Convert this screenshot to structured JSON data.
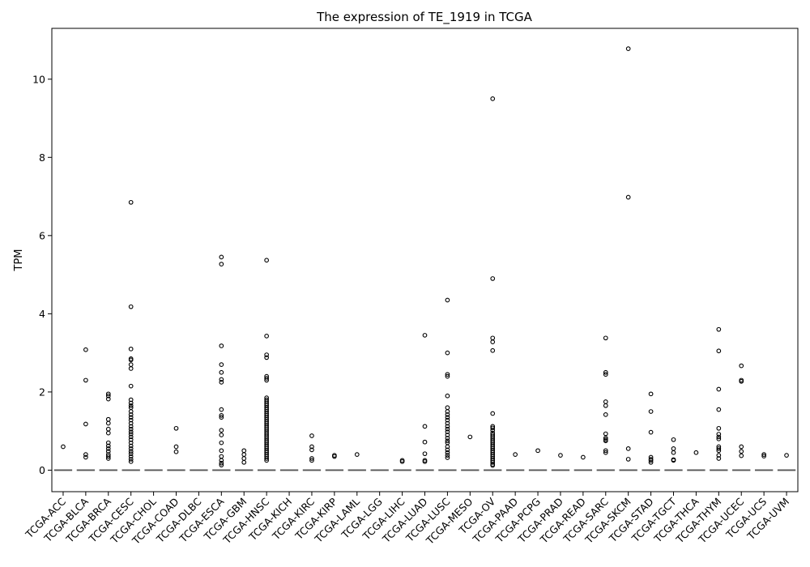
{
  "chart_data": {
    "type": "box",
    "title": "The expression of TE_1919 in TCGA",
    "xlabel": "",
    "ylabel": "TPM",
    "ylim": [
      -0.55,
      11.3
    ],
    "yticks": [
      0,
      2,
      4,
      6,
      8,
      10
    ],
    "grid": false,
    "categories": [
      "TCGA-ACC",
      "TCGA-BLCA",
      "TCGA-BRCA",
      "TCGA-CESC",
      "TCGA-CHOL",
      "TCGA-COAD",
      "TCGA-DLBC",
      "TCGA-ESCA",
      "TCGA-GBM",
      "TCGA-HNSC",
      "TCGA-KICH",
      "TCGA-KIRC",
      "TCGA-KIRP",
      "TCGA-LAML",
      "TCGA-LGG",
      "TCGA-LIHC",
      "TCGA-LUAD",
      "TCGA-LUSC",
      "TCGA-MESO",
      "TCGA-OV",
      "TCGA-PAAD",
      "TCGA-PCPG",
      "TCGA-PRAD",
      "TCGA-READ",
      "TCGA-SARC",
      "TCGA-SKCM",
      "TCGA-STAD",
      "TCGA-TGCT",
      "TCGA-THCA",
      "TCGA-THYM",
      "TCGA-UCEC",
      "TCGA-UCS",
      "TCGA-UVM"
    ],
    "medians": [
      0,
      0,
      0,
      0,
      0,
      0,
      0,
      0,
      0,
      0,
      0,
      0,
      0,
      0,
      0,
      0,
      0,
      0,
      0,
      0,
      0,
      0,
      0,
      0,
      0,
      0,
      0,
      0,
      0,
      0,
      0,
      0,
      0
    ],
    "outliers": [
      [
        0.6
      ],
      [
        3.08,
        2.3,
        1.18,
        0.4,
        0.33
      ],
      [
        1.95,
        1.9,
        1.82,
        1.3,
        1.2,
        1.05,
        0.95,
        0.7,
        0.62,
        0.55,
        0.48,
        0.4,
        0.35,
        0.3
      ],
      [
        6.85,
        4.18,
        3.1,
        2.85,
        2.82,
        2.7,
        2.6,
        2.15,
        1.8,
        1.72,
        1.65,
        1.6,
        1.5,
        1.42,
        1.35,
        1.28,
        1.2,
        1.12,
        1.05,
        0.98,
        0.92,
        0.85,
        0.78,
        0.7,
        0.62,
        0.55,
        0.48,
        0.42,
        0.35,
        0.28,
        0.22
      ],
      [],
      [
        1.07,
        0.6,
        0.47
      ],
      [],
      [
        5.45,
        5.27,
        3.18,
        2.7,
        2.5,
        2.32,
        2.25,
        1.55,
        1.4,
        1.35,
        1.02,
        0.9,
        0.7,
        0.5,
        0.35,
        0.25,
        0.18,
        0.13
      ],
      [
        0.5,
        0.4,
        0.3,
        0.2
      ],
      [
        5.37,
        3.43,
        2.95,
        2.88,
        2.4,
        2.35,
        2.3,
        1.85,
        1.8,
        1.75,
        1.7,
        1.65,
        1.6,
        1.55,
        1.5,
        1.45,
        1.4,
        1.35,
        1.3,
        1.25,
        1.2,
        1.15,
        1.1,
        1.05,
        1.0,
        0.95,
        0.9,
        0.85,
        0.8,
        0.75,
        0.7,
        0.65,
        0.6,
        0.55,
        0.5,
        0.45,
        0.4,
        0.35,
        0.3,
        0.25
      ],
      [],
      [
        0.88,
        0.6,
        0.52,
        0.3,
        0.25
      ],
      [
        0.38,
        0.35
      ],
      [
        0.4
      ],
      [],
      [
        0.25,
        0.22
      ],
      [
        3.45,
        1.12,
        0.72,
        0.42,
        0.25,
        0.22
      ],
      [
        4.35,
        3.0,
        2.45,
        2.4,
        1.9,
        1.6,
        1.5,
        1.42,
        1.35,
        1.28,
        1.2,
        1.12,
        1.05,
        0.98,
        0.9,
        0.82,
        0.75,
        0.7,
        0.6,
        0.52,
        0.45,
        0.38,
        0.32
      ],
      [
        0.85
      ],
      [
        9.5,
        4.9,
        3.38,
        3.28,
        3.06,
        1.45,
        1.12,
        1.08,
        1.02,
        0.95,
        0.9,
        0.85,
        0.8,
        0.75,
        0.7,
        0.65,
        0.6,
        0.55,
        0.5,
        0.45,
        0.4,
        0.35,
        0.3,
        0.25,
        0.2,
        0.15,
        0.12
      ],
      [
        0.4
      ],
      [
        0.5
      ],
      [
        0.38
      ],
      [
        0.33
      ],
      [
        3.38,
        2.5,
        2.45,
        1.75,
        1.65,
        1.42,
        0.93,
        0.82,
        0.78,
        0.75,
        0.5,
        0.45
      ],
      [
        10.78,
        6.98,
        0.55,
        0.28
      ],
      [
        1.95,
        1.5,
        0.97,
        0.33,
        0.28,
        0.25,
        0.2
      ],
      [
        0.78,
        0.55,
        0.45,
        0.27,
        0.25
      ],
      [
        0.45
      ],
      [
        3.6,
        3.05,
        2.07,
        1.55,
        1.07,
        0.92,
        0.85,
        0.8,
        0.6,
        0.55,
        0.5,
        0.38,
        0.3
      ],
      [
        2.67,
        2.3,
        2.27,
        0.6,
        0.48,
        0.37
      ],
      [
        0.4,
        0.36
      ],
      [
        0.38
      ]
    ]
  }
}
